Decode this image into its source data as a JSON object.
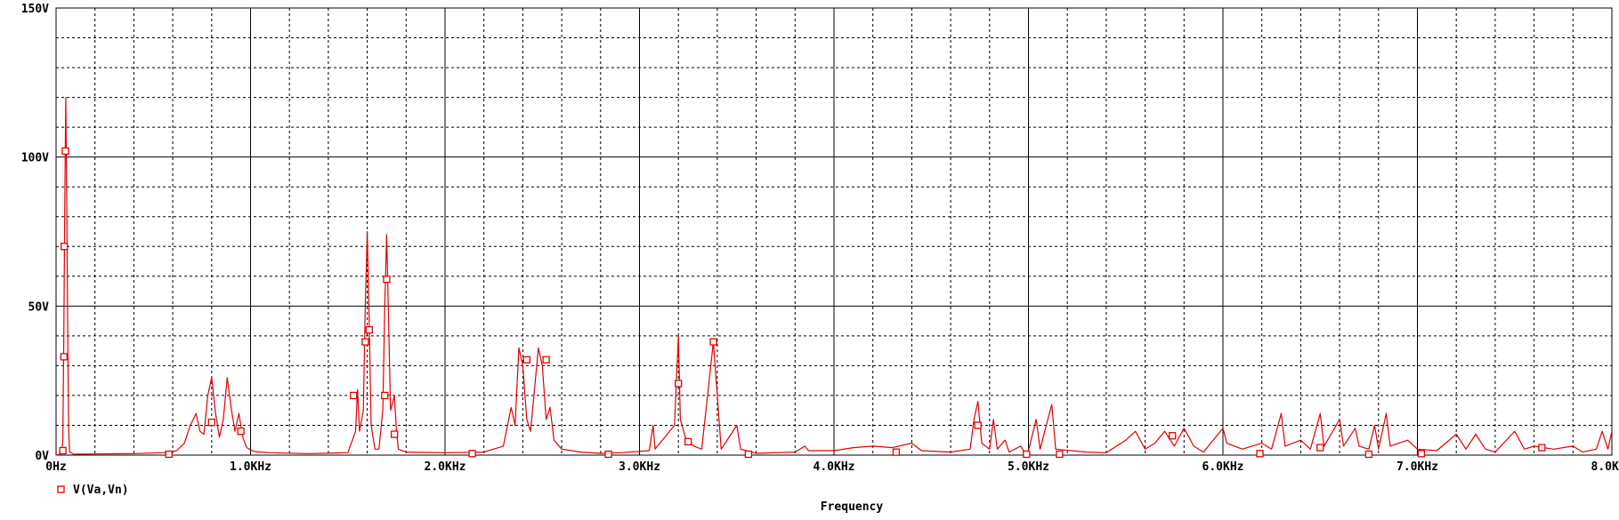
{
  "chart_data": {
    "type": "line",
    "title": "",
    "xlabel": "Frequency",
    "ylabel": "",
    "xlim": [
      0,
      8000
    ],
    "ylim": [
      0,
      150
    ],
    "grid": true,
    "x_tick_values": [
      0,
      1000,
      2000,
      3000,
      4000,
      5000,
      6000,
      7000,
      8000
    ],
    "x_tick_labels": [
      "0Hz",
      "1.0KHz",
      "2.0KHz",
      "3.0KHz",
      "4.0KHz",
      "5.0KHz",
      "6.0KHz",
      "7.0KHz",
      "8.0KHz"
    ],
    "y_tick_values": [
      0,
      50,
      100,
      150
    ],
    "y_tick_labels": [
      "0V",
      "50V",
      "100V",
      "150V"
    ],
    "legend_position": "bottom-left",
    "colors": {
      "series": "#e00000",
      "grid": "#000000",
      "text": "#000000"
    },
    "series": [
      {
        "name": "V(Va,Vn)",
        "marker": "square",
        "points": [
          [
            0,
            0
          ],
          [
            20,
            0.3
          ],
          [
            30,
            1
          ],
          [
            35,
            5
          ],
          [
            40,
            40
          ],
          [
            45,
            85
          ],
          [
            50,
            120
          ],
          [
            55,
            85
          ],
          [
            60,
            40
          ],
          [
            65,
            8
          ],
          [
            70,
            1
          ],
          [
            90,
            0.3
          ],
          [
            200,
            0.4
          ],
          [
            400,
            0.5
          ],
          [
            550,
            0.8
          ],
          [
            620,
            1.5
          ],
          [
            660,
            4
          ],
          [
            690,
            10
          ],
          [
            720,
            14
          ],
          [
            740,
            8
          ],
          [
            760,
            7
          ],
          [
            780,
            20
          ],
          [
            800,
            26
          ],
          [
            820,
            14
          ],
          [
            840,
            6
          ],
          [
            860,
            12
          ],
          [
            880,
            26
          ],
          [
            900,
            16
          ],
          [
            920,
            8
          ],
          [
            940,
            14
          ],
          [
            960,
            6
          ],
          [
            980,
            2.5
          ],
          [
            1020,
            1.2
          ],
          [
            1100,
            0.8
          ],
          [
            1300,
            0.5
          ],
          [
            1500,
            0.8
          ],
          [
            1540,
            8
          ],
          [
            1550,
            22
          ],
          [
            1560,
            8
          ],
          [
            1580,
            15
          ],
          [
            1590,
            50
          ],
          [
            1600,
            75
          ],
          [
            1610,
            45
          ],
          [
            1620,
            10
          ],
          [
            1640,
            2
          ],
          [
            1660,
            2
          ],
          [
            1680,
            15
          ],
          [
            1690,
            50
          ],
          [
            1700,
            74
          ],
          [
            1710,
            45
          ],
          [
            1720,
            15
          ],
          [
            1740,
            20
          ],
          [
            1750,
            8
          ],
          [
            1760,
            2
          ],
          [
            1800,
            1
          ],
          [
            2000,
            0.8
          ],
          [
            2200,
            1
          ],
          [
            2300,
            3
          ],
          [
            2340,
            16
          ],
          [
            2360,
            10
          ],
          [
            2380,
            36
          ],
          [
            2400,
            30
          ],
          [
            2420,
            12
          ],
          [
            2440,
            8
          ],
          [
            2460,
            22
          ],
          [
            2480,
            36
          ],
          [
            2500,
            30
          ],
          [
            2520,
            12
          ],
          [
            2540,
            16
          ],
          [
            2560,
            5
          ],
          [
            2600,
            2
          ],
          [
            2700,
            1
          ],
          [
            2800,
            0.6
          ],
          [
            2900,
            0.8
          ],
          [
            3050,
            1.5
          ],
          [
            3070,
            10
          ],
          [
            3080,
            2
          ],
          [
            3180,
            10
          ],
          [
            3200,
            40
          ],
          [
            3210,
            12
          ],
          [
            3240,
            5
          ],
          [
            3280,
            3
          ],
          [
            3320,
            2
          ],
          [
            3380,
            38
          ],
          [
            3400,
            20
          ],
          [
            3420,
            2
          ],
          [
            3500,
            10
          ],
          [
            3520,
            2
          ],
          [
            3600,
            0.6
          ],
          [
            3800,
            1
          ],
          [
            3850,
            3
          ],
          [
            3870,
            1.5
          ],
          [
            4000,
            1.5
          ],
          [
            4100,
            2.5
          ],
          [
            4200,
            3
          ],
          [
            4300,
            2.5
          ],
          [
            4400,
            4
          ],
          [
            4450,
            1.5
          ],
          [
            4600,
            1
          ],
          [
            4700,
            2
          ],
          [
            4720,
            12
          ],
          [
            4740,
            18
          ],
          [
            4760,
            4
          ],
          [
            4800,
            2
          ],
          [
            4820,
            12
          ],
          [
            4840,
            2
          ],
          [
            4880,
            5
          ],
          [
            4900,
            1
          ],
          [
            4960,
            3
          ],
          [
            4980,
            1
          ],
          [
            5000,
            1.5
          ],
          [
            5040,
            12
          ],
          [
            5060,
            2
          ],
          [
            5120,
            17
          ],
          [
            5140,
            2
          ],
          [
            5300,
            1
          ],
          [
            5400,
            0.8
          ],
          [
            5500,
            5
          ],
          [
            5550,
            8
          ],
          [
            5600,
            2
          ],
          [
            5650,
            4
          ],
          [
            5700,
            8
          ],
          [
            5750,
            3
          ],
          [
            5800,
            9
          ],
          [
            5850,
            3
          ],
          [
            5900,
            1
          ],
          [
            6000,
            9
          ],
          [
            6020,
            4
          ],
          [
            6100,
            2
          ],
          [
            6200,
            4
          ],
          [
            6250,
            2
          ],
          [
            6300,
            14
          ],
          [
            6320,
            3
          ],
          [
            6400,
            5
          ],
          [
            6450,
            2
          ],
          [
            6500,
            14
          ],
          [
            6520,
            3
          ],
          [
            6600,
            12
          ],
          [
            6620,
            3
          ],
          [
            6680,
            9
          ],
          [
            6700,
            3
          ],
          [
            6750,
            2
          ],
          [
            6780,
            10
          ],
          [
            6800,
            2
          ],
          [
            6840,
            14
          ],
          [
            6860,
            3
          ],
          [
            6950,
            5
          ],
          [
            7000,
            2
          ],
          [
            7100,
            1.5
          ],
          [
            7200,
            7
          ],
          [
            7250,
            2
          ],
          [
            7300,
            7
          ],
          [
            7350,
            2
          ],
          [
            7400,
            1
          ],
          [
            7500,
            8
          ],
          [
            7550,
            2
          ],
          [
            7600,
            3
          ],
          [
            7700,
            2
          ],
          [
            7800,
            3
          ],
          [
            7850,
            1
          ],
          [
            7920,
            2
          ],
          [
            7950,
            8
          ],
          [
            7980,
            2
          ],
          [
            8000,
            8
          ]
        ],
        "marker_points": [
          [
            35,
            1.5
          ],
          [
            40,
            33
          ],
          [
            42,
            70
          ],
          [
            48,
            102
          ],
          [
            580,
            0.3
          ],
          [
            800,
            11
          ],
          [
            950,
            8
          ],
          [
            1530,
            20
          ],
          [
            1590,
            38
          ],
          [
            1610,
            42
          ],
          [
            1690,
            20
          ],
          [
            1700,
            59
          ],
          [
            1740,
            7
          ],
          [
            2140,
            0.5
          ],
          [
            2420,
            32
          ],
          [
            2520,
            32
          ],
          [
            2840,
            0.3
          ],
          [
            3200,
            24
          ],
          [
            3250,
            4.5
          ],
          [
            3380,
            38
          ],
          [
            3560,
            0.3
          ],
          [
            4320,
            1
          ],
          [
            4740,
            10
          ],
          [
            4990,
            0.3
          ],
          [
            5160,
            0.3
          ],
          [
            5740,
            6.5
          ],
          [
            6190,
            0.5
          ],
          [
            6500,
            2.5
          ],
          [
            6750,
            0.3
          ],
          [
            7020,
            0.5
          ],
          [
            7640,
            2.5
          ]
        ]
      }
    ]
  }
}
